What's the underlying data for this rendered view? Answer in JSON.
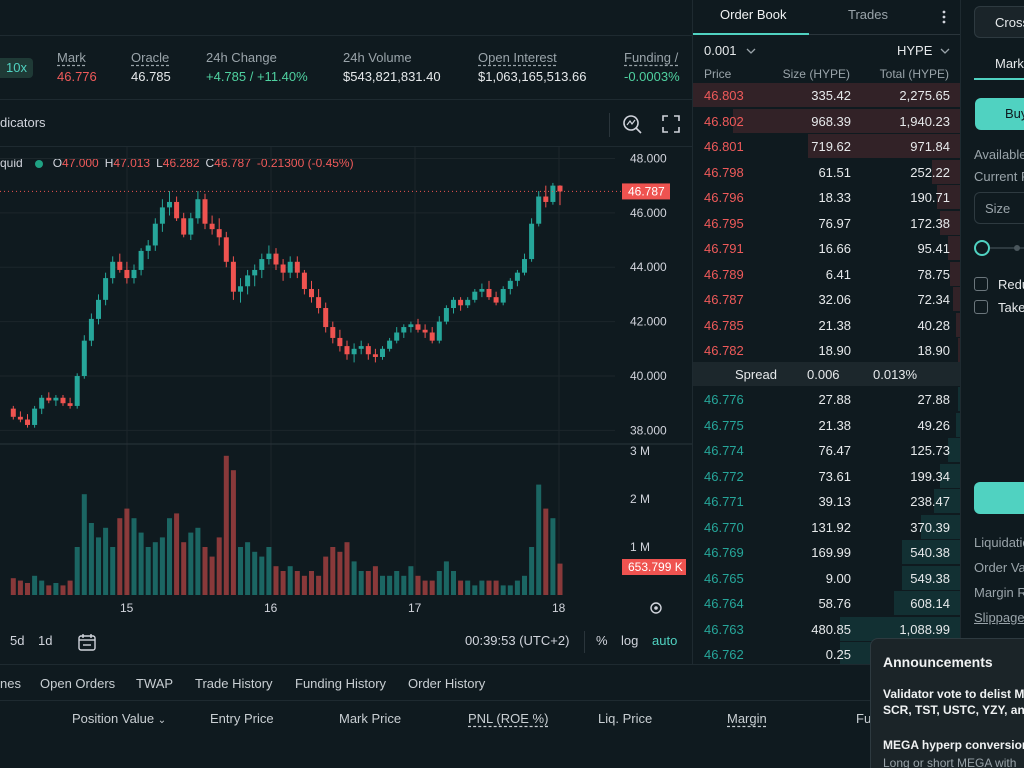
{
  "market": {
    "leverage": "10x",
    "stats": [
      {
        "label": "Mark",
        "value": "46.776",
        "color": "red",
        "underline": true
      },
      {
        "label": "Oracle",
        "value": "46.785",
        "color": "white",
        "underline": true
      },
      {
        "label": "24h Change",
        "value": "+4.785 / +11.40%",
        "color": "green",
        "underline": false
      },
      {
        "label": "24h Volume",
        "value": "$543,821,831.40",
        "color": "white",
        "underline": false
      },
      {
        "label": "Open Interest",
        "value": "$1,063,165,513.66",
        "color": "white",
        "underline": true
      },
      {
        "label": "Funding /",
        "value": "-0.0003%",
        "color": "green",
        "underline": true
      }
    ]
  },
  "chart_toolbar": {
    "indicators_label": "dicators"
  },
  "legend": {
    "prefix": "quid",
    "open_key": "O",
    "open": "47.000",
    "high_key": "H",
    "high": "47.013",
    "low_key": "L",
    "low": "46.282",
    "close_key": "C",
    "close": "46.787",
    "change": "-0.21300 (-0.45%)"
  },
  "chart_data": {
    "type": "candlestick",
    "price_axis_ticks": [
      "48.000",
      "46.000",
      "44.000",
      "42.000",
      "40.000",
      "38.000"
    ],
    "volume_axis_ticks": [
      "3 M",
      "2 M",
      "1 M"
    ],
    "x_ticks": [
      "15",
      "16",
      "17",
      "18"
    ],
    "last_price_label": "46.787",
    "last_volume_label": "653.799 K",
    "up_color": "#26a69a",
    "down_color": "#ef5350",
    "candles": [
      [
        38.8,
        38.9,
        38.4,
        38.5
      ],
      [
        38.5,
        38.7,
        38.3,
        38.4
      ],
      [
        38.4,
        38.6,
        38.1,
        38.2
      ],
      [
        38.2,
        38.9,
        38.1,
        38.8
      ],
      [
        38.8,
        39.3,
        38.6,
        39.2
      ],
      [
        39.2,
        39.4,
        39.0,
        39.1
      ],
      [
        39.1,
        39.3,
        38.9,
        39.2
      ],
      [
        39.2,
        39.3,
        38.9,
        39.0
      ],
      [
        39.0,
        39.2,
        38.8,
        38.9
      ],
      [
        38.9,
        40.1,
        38.8,
        40.0
      ],
      [
        40.0,
        41.5,
        39.9,
        41.3
      ],
      [
        41.3,
        42.3,
        41.1,
        42.1
      ],
      [
        42.1,
        43.0,
        41.9,
        42.8
      ],
      [
        42.8,
        43.8,
        42.6,
        43.6
      ],
      [
        43.6,
        44.4,
        43.4,
        44.2
      ],
      [
        44.2,
        44.5,
        43.8,
        43.9
      ],
      [
        43.9,
        44.2,
        43.4,
        43.6
      ],
      [
        43.6,
        44.1,
        43.4,
        43.9
      ],
      [
        43.9,
        44.7,
        43.7,
        44.6
      ],
      [
        44.6,
        45.0,
        44.3,
        44.8
      ],
      [
        44.8,
        45.8,
        44.6,
        45.6
      ],
      [
        45.6,
        46.5,
        45.3,
        46.2
      ],
      [
        46.2,
        46.8,
        45.9,
        46.4
      ],
      [
        46.4,
        46.6,
        45.7,
        45.8
      ],
      [
        45.8,
        46.0,
        45.1,
        45.2
      ],
      [
        45.2,
        46.0,
        45.0,
        45.8
      ],
      [
        45.8,
        46.8,
        45.6,
        46.5
      ],
      [
        46.5,
        46.7,
        45.4,
        45.6
      ],
      [
        45.6,
        45.9,
        45.2,
        45.4
      ],
      [
        45.4,
        45.8,
        44.8,
        45.1
      ],
      [
        45.1,
        45.3,
        44.0,
        44.2
      ],
      [
        44.2,
        44.4,
        42.8,
        43.1
      ],
      [
        43.1,
        43.6,
        42.7,
        43.3
      ],
      [
        43.3,
        43.9,
        43.0,
        43.7
      ],
      [
        43.7,
        44.1,
        43.3,
        43.9
      ],
      [
        43.9,
        44.5,
        43.6,
        44.3
      ],
      [
        44.3,
        44.8,
        44.1,
        44.5
      ],
      [
        44.5,
        44.7,
        43.9,
        44.1
      ],
      [
        44.1,
        44.3,
        43.5,
        43.8
      ],
      [
        43.8,
        44.4,
        43.6,
        44.2
      ],
      [
        44.2,
        44.4,
        43.6,
        43.8
      ],
      [
        43.8,
        43.9,
        43.0,
        43.2
      ],
      [
        43.2,
        43.5,
        42.7,
        42.9
      ],
      [
        42.9,
        43.2,
        42.3,
        42.5
      ],
      [
        42.5,
        42.7,
        41.6,
        41.8
      ],
      [
        41.8,
        42.0,
        41.2,
        41.4
      ],
      [
        41.4,
        41.7,
        40.9,
        41.1
      ],
      [
        41.1,
        41.3,
        40.6,
        40.8
      ],
      [
        40.8,
        41.2,
        40.5,
        41.0
      ],
      [
        41.0,
        41.3,
        40.8,
        41.1
      ],
      [
        41.1,
        41.2,
        40.6,
        40.8
      ],
      [
        40.8,
        41.0,
        40.5,
        40.7
      ],
      [
        40.7,
        41.1,
        40.6,
        41.0
      ],
      [
        41.0,
        41.4,
        40.9,
        41.3
      ],
      [
        41.3,
        41.8,
        41.2,
        41.6
      ],
      [
        41.6,
        41.9,
        41.4,
        41.8
      ],
      [
        41.8,
        42.0,
        41.6,
        41.9
      ],
      [
        41.9,
        42.1,
        41.6,
        41.7
      ],
      [
        41.7,
        41.9,
        41.4,
        41.6
      ],
      [
        41.6,
        41.8,
        41.2,
        41.3
      ],
      [
        41.3,
        42.2,
        41.2,
        42.0
      ],
      [
        42.0,
        42.6,
        41.9,
        42.5
      ],
      [
        42.5,
        42.9,
        42.3,
        42.8
      ],
      [
        42.8,
        42.9,
        42.4,
        42.6
      ],
      [
        42.6,
        42.9,
        42.5,
        42.8
      ],
      [
        42.8,
        43.2,
        42.7,
        43.1
      ],
      [
        43.1,
        43.4,
        42.9,
        43.2
      ],
      [
        43.2,
        43.5,
        42.8,
        42.9
      ],
      [
        42.9,
        43.1,
        42.6,
        42.7
      ],
      [
        42.7,
        43.3,
        42.6,
        43.2
      ],
      [
        43.2,
        43.6,
        43.0,
        43.5
      ],
      [
        43.5,
        43.9,
        43.3,
        43.8
      ],
      [
        43.8,
        44.5,
        43.7,
        44.3
      ],
      [
        44.3,
        45.8,
        44.2,
        45.6
      ],
      [
        45.6,
        46.8,
        45.5,
        46.6
      ],
      [
        46.6,
        47.0,
        46.2,
        46.4
      ],
      [
        46.4,
        47.1,
        46.3,
        47.0
      ],
      [
        47.0,
        47.013,
        46.282,
        46.787
      ]
    ],
    "volumes": [
      0.35,
      0.3,
      0.25,
      0.4,
      0.3,
      0.2,
      0.25,
      0.2,
      0.3,
      1.0,
      2.1,
      1.5,
      1.2,
      1.4,
      1.0,
      1.6,
      1.8,
      1.6,
      1.3,
      1.0,
      1.1,
      1.2,
      1.6,
      1.7,
      1.1,
      1.3,
      1.4,
      1.0,
      0.8,
      1.2,
      2.9,
      2.6,
      1.0,
      1.1,
      0.9,
      0.8,
      1.0,
      0.6,
      0.5,
      0.6,
      0.5,
      0.4,
      0.5,
      0.4,
      0.8,
      1.0,
      0.9,
      1.1,
      0.7,
      0.5,
      0.5,
      0.6,
      0.4,
      0.4,
      0.5,
      0.4,
      0.6,
      0.4,
      0.3,
      0.3,
      0.5,
      0.7,
      0.5,
      0.3,
      0.3,
      0.2,
      0.3,
      0.3,
      0.3,
      0.2,
      0.2,
      0.3,
      0.4,
      1.0,
      2.3,
      1.8,
      1.6,
      0.654
    ]
  },
  "chart_bottom": {
    "tf_5d": "5d",
    "tf_1d": "1d",
    "time": "00:39:53 (UTC+2)",
    "pct": "%",
    "log": "log",
    "auto": "auto"
  },
  "orderbook": {
    "tab_book": "Order Book",
    "tab_trades": "Trades",
    "tick": "0.001",
    "asset": "HYPE",
    "head_price": "Price",
    "head_size": "Size (HYPE)",
    "head_total": "Total (HYPE)",
    "asks": [
      {
        "price": "46.803",
        "size": "335.42",
        "total": "2,275.65",
        "depth": 1.0
      },
      {
        "price": "46.802",
        "size": "968.39",
        "total": "1,940.23",
        "depth": 0.85
      },
      {
        "price": "46.801",
        "size": "719.62",
        "total": "971.84",
        "depth": 0.57
      },
      {
        "price": "46.798",
        "size": "61.51",
        "total": "252.22",
        "depth": 0.11
      },
      {
        "price": "46.796",
        "size": "18.33",
        "total": "190.71",
        "depth": 0.09
      },
      {
        "price": "46.795",
        "size": "76.97",
        "total": "172.38",
        "depth": 0.08
      },
      {
        "price": "46.791",
        "size": "16.66",
        "total": "95.41",
        "depth": 0.05
      },
      {
        "price": "46.789",
        "size": "6.41",
        "total": "78.75",
        "depth": 0.04
      },
      {
        "price": "46.787",
        "size": "32.06",
        "total": "72.34",
        "depth": 0.03
      },
      {
        "price": "46.785",
        "size": "21.38",
        "total": "40.28",
        "depth": 0.02
      },
      {
        "price": "46.782",
        "size": "18.90",
        "total": "18.90",
        "depth": 0.01
      }
    ],
    "spread_label": "Spread",
    "spread_value": "0.006",
    "spread_pct": "0.013%",
    "bids": [
      {
        "price": "46.776",
        "size": "27.88",
        "total": "27.88",
        "depth": 0.01
      },
      {
        "price": "46.775",
        "size": "21.38",
        "total": "49.26",
        "depth": 0.02
      },
      {
        "price": "46.774",
        "size": "76.47",
        "total": "125.73",
        "depth": 0.05
      },
      {
        "price": "46.772",
        "size": "73.61",
        "total": "199.34",
        "depth": 0.08
      },
      {
        "price": "46.771",
        "size": "39.13",
        "total": "238.47",
        "depth": 0.1
      },
      {
        "price": "46.770",
        "size": "131.92",
        "total": "370.39",
        "depth": 0.15
      },
      {
        "price": "46.769",
        "size": "169.99",
        "total": "540.38",
        "depth": 0.22
      },
      {
        "price": "46.765",
        "size": "9.00",
        "total": "549.38",
        "depth": 0.22
      },
      {
        "price": "46.764",
        "size": "58.76",
        "total": "608.14",
        "depth": 0.25
      },
      {
        "price": "46.763",
        "size": "480.85",
        "total": "1,088.99",
        "depth": 0.45
      },
      {
        "price": "46.762",
        "size": "0.25",
        "total": "",
        "depth": 0.45
      }
    ]
  },
  "trade_panel": {
    "margin_mode": "Cross",
    "order_type": "Marke",
    "buy_label": "Buy",
    "available": "Available",
    "current": "Current P",
    "size_placeholder": "Size",
    "reduce": "Redu",
    "take": "Take",
    "liquidation": "Liquidatio",
    "order_value": "Order Va",
    "margin": "Margin Re",
    "slippage": "Slippage"
  },
  "bottom_tabs": {
    "tabs": [
      "nes",
      "Open Orders",
      "TWAP",
      "Trade History",
      "Funding History",
      "Order History"
    ],
    "columns": [
      "Position Value",
      "Entry Price",
      "Mark Price",
      "PNL (ROE %)",
      "Liq. Price",
      "Margin",
      "Fu"
    ]
  },
  "announcements": {
    "title": "Announcements",
    "item1_title": "Validator vote to delist M",
    "item1_body": "SCR, TST, USTC, YZY, an",
    "item2_title": "MEGA hyperp conversion",
    "item2_body": "Long or short MEGA with"
  },
  "colors": {
    "accent": "#50d2c1",
    "up": "#26a69a",
    "down": "#ef5350"
  }
}
